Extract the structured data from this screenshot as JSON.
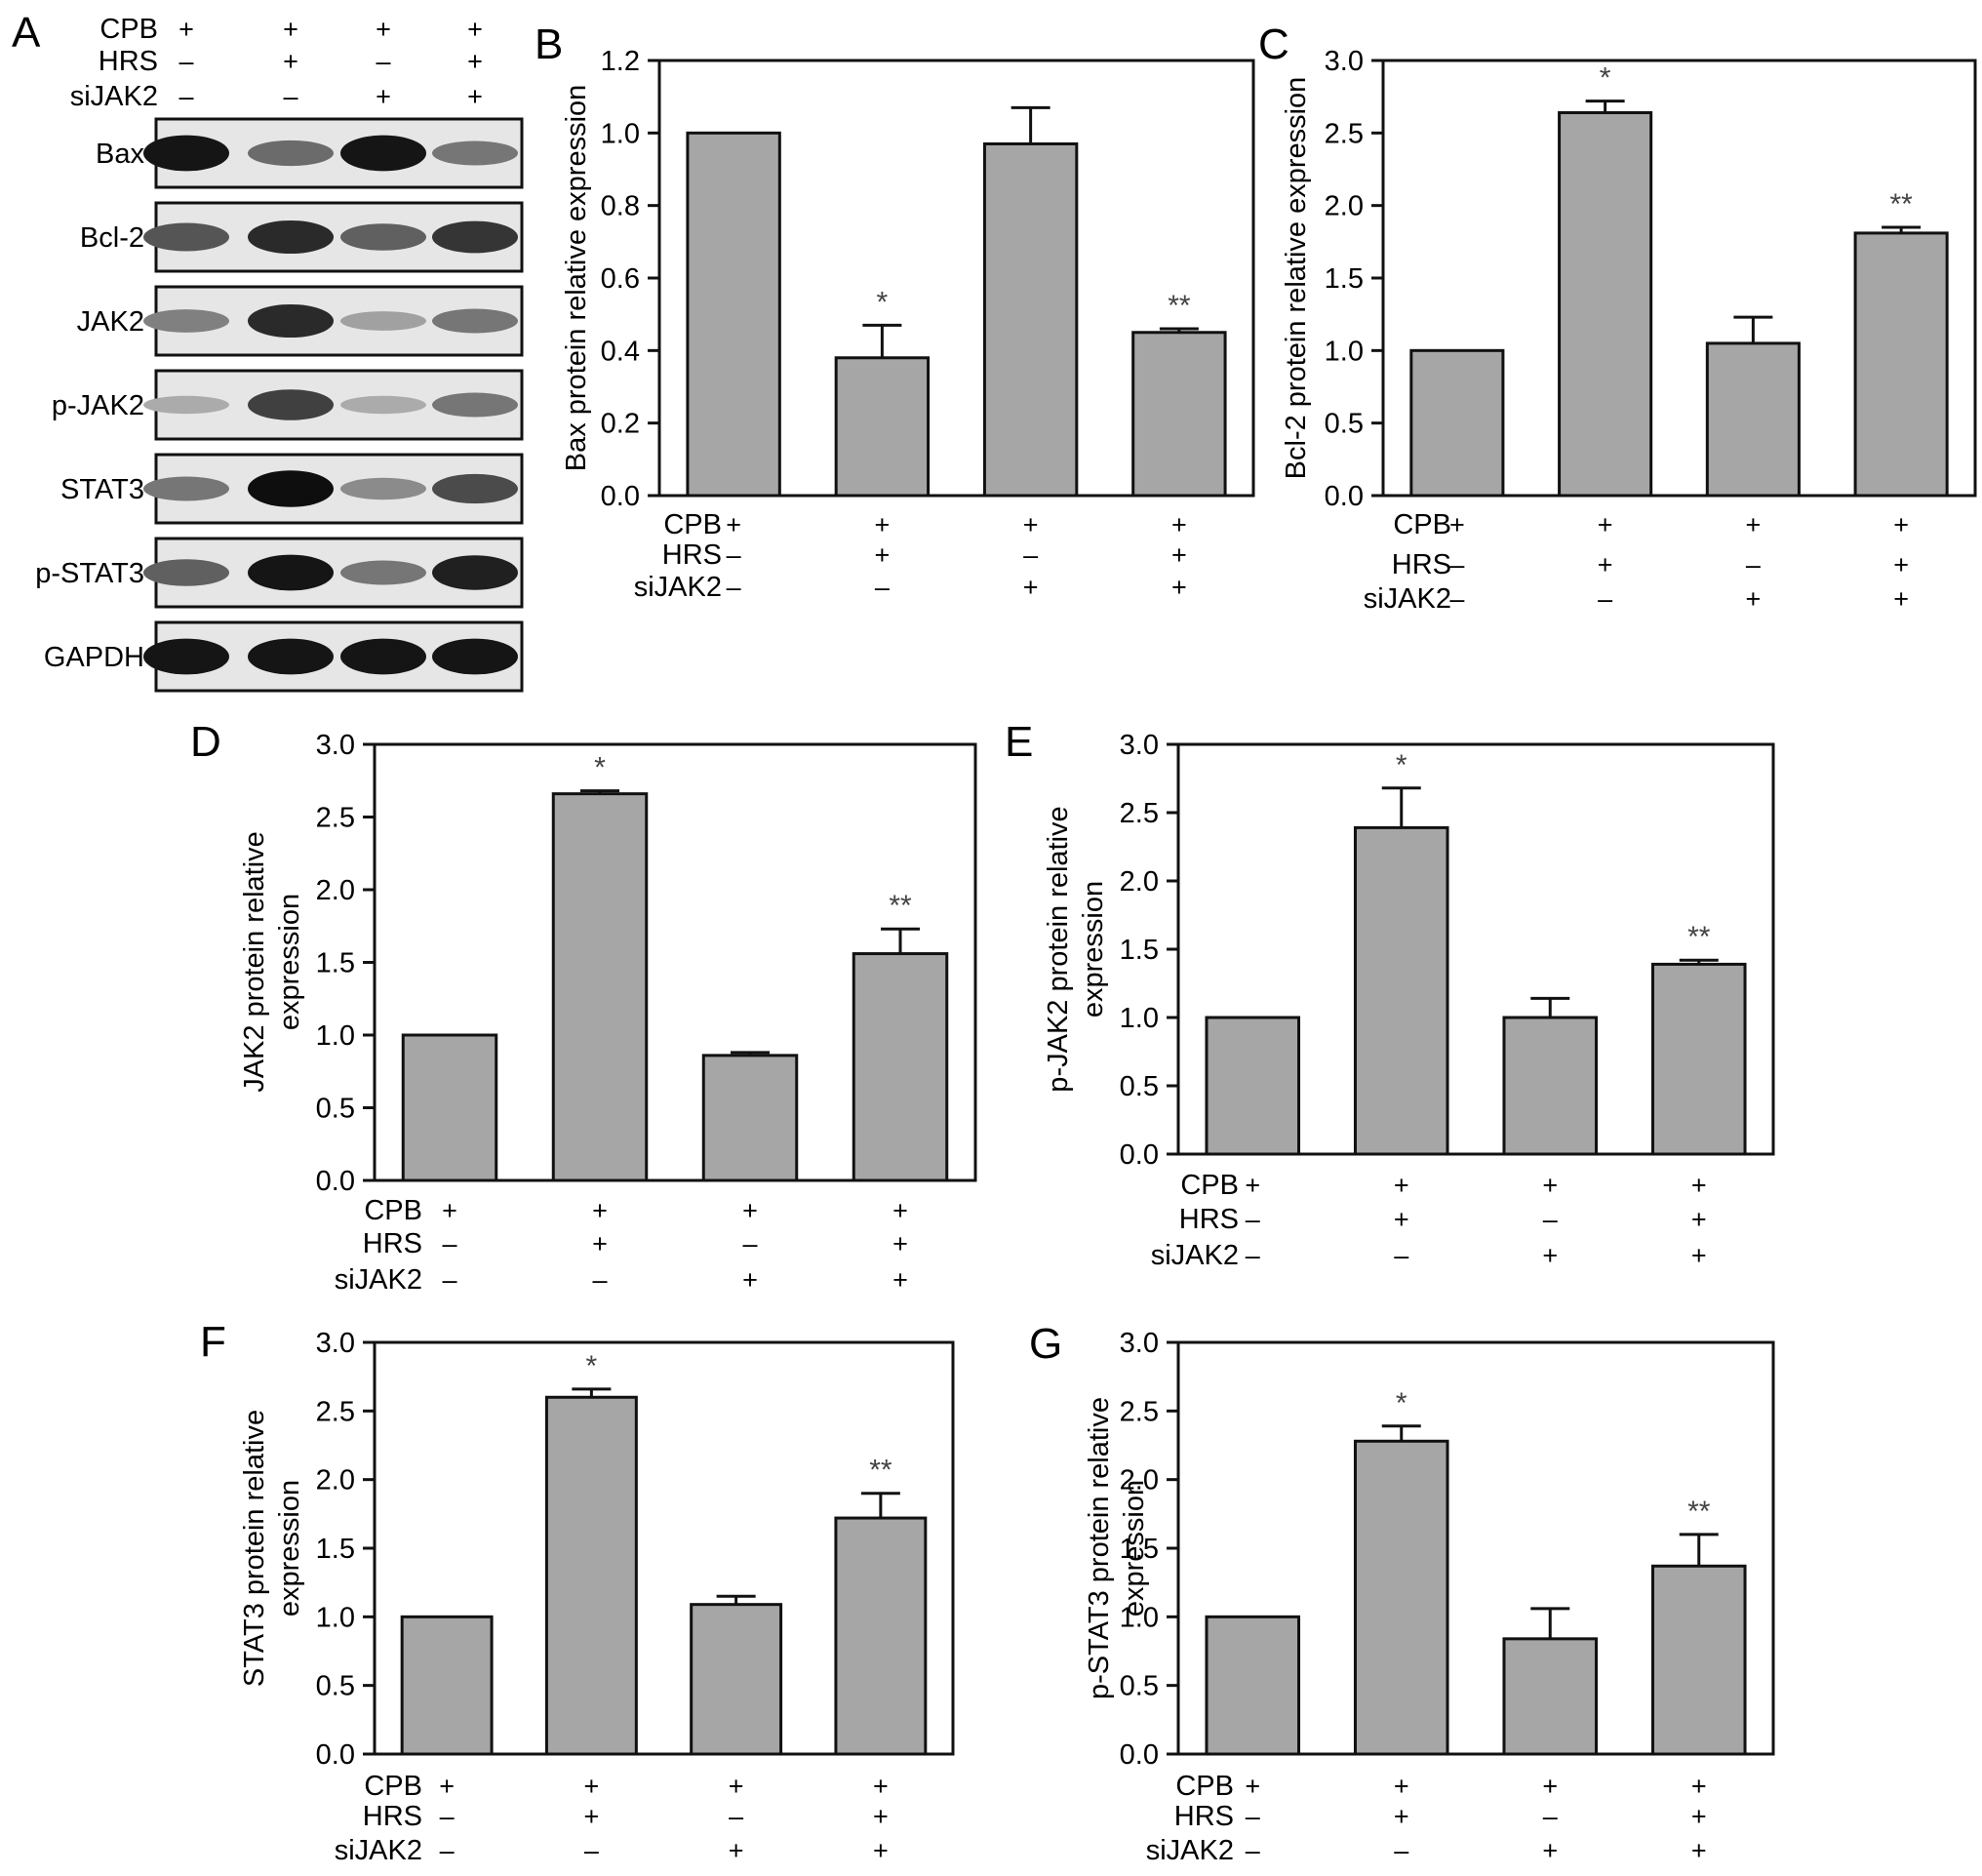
{
  "panel_letters": [
    "A",
    "B",
    "C",
    "D",
    "E",
    "F",
    "G"
  ],
  "condition_labels": [
    "CPB",
    "HRS",
    "siJAK2"
  ],
  "condition_matrix": [
    [
      "+",
      "+",
      "+",
      "+"
    ],
    [
      "–",
      "+",
      "–",
      "+"
    ],
    [
      "–",
      "–",
      "+",
      "+"
    ]
  ],
  "blot": {
    "bands": [
      {
        "label": "Bax",
        "intensity": [
          0.95,
          0.55,
          0.95,
          0.5
        ]
      },
      {
        "label": "Bcl-2",
        "intensity": [
          0.65,
          0.85,
          0.6,
          0.8
        ]
      },
      {
        "label": "JAK2",
        "intensity": [
          0.45,
          0.85,
          0.3,
          0.5
        ]
      },
      {
        "label": "p-JAK2",
        "intensity": [
          0.25,
          0.75,
          0.25,
          0.5
        ]
      },
      {
        "label": "STAT3",
        "intensity": [
          0.5,
          0.98,
          0.4,
          0.7
        ]
      },
      {
        "label": "p-STAT3",
        "intensity": [
          0.6,
          0.95,
          0.5,
          0.9
        ]
      },
      {
        "label": "GAPDH",
        "intensity": [
          0.95,
          0.95,
          0.95,
          0.95
        ]
      }
    ]
  },
  "chart_data": [
    {
      "type": "bar",
      "panel": "B",
      "ylabel": "Bax protein relative expression",
      "ylim": [
        0,
        1.2
      ],
      "yticks": [
        "0.0",
        "0.2",
        "0.4",
        "0.6",
        "0.8",
        "1.0",
        "1.2"
      ],
      "values": [
        1.0,
        0.38,
        0.97,
        0.45
      ],
      "errors": [
        0,
        0.09,
        0.1,
        0.01
      ],
      "annotations": [
        "",
        "*",
        "",
        "**"
      ],
      "bar_color": "#a6a6a6"
    },
    {
      "type": "bar",
      "panel": "C",
      "ylabel": "Bcl-2  protein relative expression",
      "ylim": [
        0,
        3.0
      ],
      "yticks": [
        "0.0",
        "0.5",
        "1.0",
        "1.5",
        "2.0",
        "2.5",
        "3.0"
      ],
      "values": [
        1.0,
        2.64,
        1.05,
        1.81
      ],
      "errors": [
        0,
        0.08,
        0.18,
        0.04
      ],
      "annotations": [
        "",
        "*",
        "",
        "**"
      ],
      "bar_color": "#a6a6a6"
    },
    {
      "type": "bar",
      "panel": "D",
      "ylabel": [
        "JAK2 protein relative",
        "expression"
      ],
      "ylim": [
        0,
        3.0
      ],
      "yticks": [
        "0.0",
        "0.5",
        "1.0",
        "1.5",
        "2.0",
        "2.5",
        "3.0"
      ],
      "values": [
        1.0,
        2.66,
        0.86,
        1.56
      ],
      "errors": [
        0,
        0.02,
        0.02,
        0.17
      ],
      "annotations": [
        "",
        "*",
        "",
        "**"
      ],
      "bar_color": "#a6a6a6"
    },
    {
      "type": "bar",
      "panel": "E",
      "ylabel": [
        "p-JAK2 protein relative",
        "expression"
      ],
      "ylim": [
        0,
        3.0
      ],
      "yticks": [
        "0.0",
        "0.5",
        "1.0",
        "1.5",
        "2.0",
        "2.5",
        "3.0"
      ],
      "values": [
        1.0,
        2.39,
        1.0,
        1.39
      ],
      "errors": [
        0,
        0.29,
        0.14,
        0.03
      ],
      "annotations": [
        "",
        "*",
        "",
        "**"
      ],
      "bar_color": "#a6a6a6"
    },
    {
      "type": "bar",
      "panel": "F",
      "ylabel": [
        "STAT3  protein relative",
        "expression"
      ],
      "ylim": [
        0,
        3.0
      ],
      "yticks": [
        "0.0",
        "0.5",
        "1.0",
        "1.5",
        "2.0",
        "2.5",
        "3.0"
      ],
      "values": [
        1.0,
        2.6,
        1.09,
        1.72
      ],
      "errors": [
        0,
        0.06,
        0.06,
        0.18
      ],
      "annotations": [
        "",
        "*",
        "",
        "**"
      ],
      "bar_color": "#a6a6a6"
    },
    {
      "type": "bar",
      "panel": "G",
      "ylabel": [
        "p-STAT3 protein relative",
        "expression"
      ],
      "ylim": [
        0,
        3.0
      ],
      "yticks": [
        "0.0",
        "0.5",
        "1.0",
        "1.5",
        "2.0",
        "2.5",
        "3.0"
      ],
      "values": [
        1.0,
        2.28,
        0.84,
        1.37
      ],
      "errors": [
        0,
        0.11,
        0.22,
        0.23
      ],
      "annotations": [
        "",
        "*",
        "",
        "**"
      ],
      "bar_color": "#a6a6a6"
    }
  ]
}
